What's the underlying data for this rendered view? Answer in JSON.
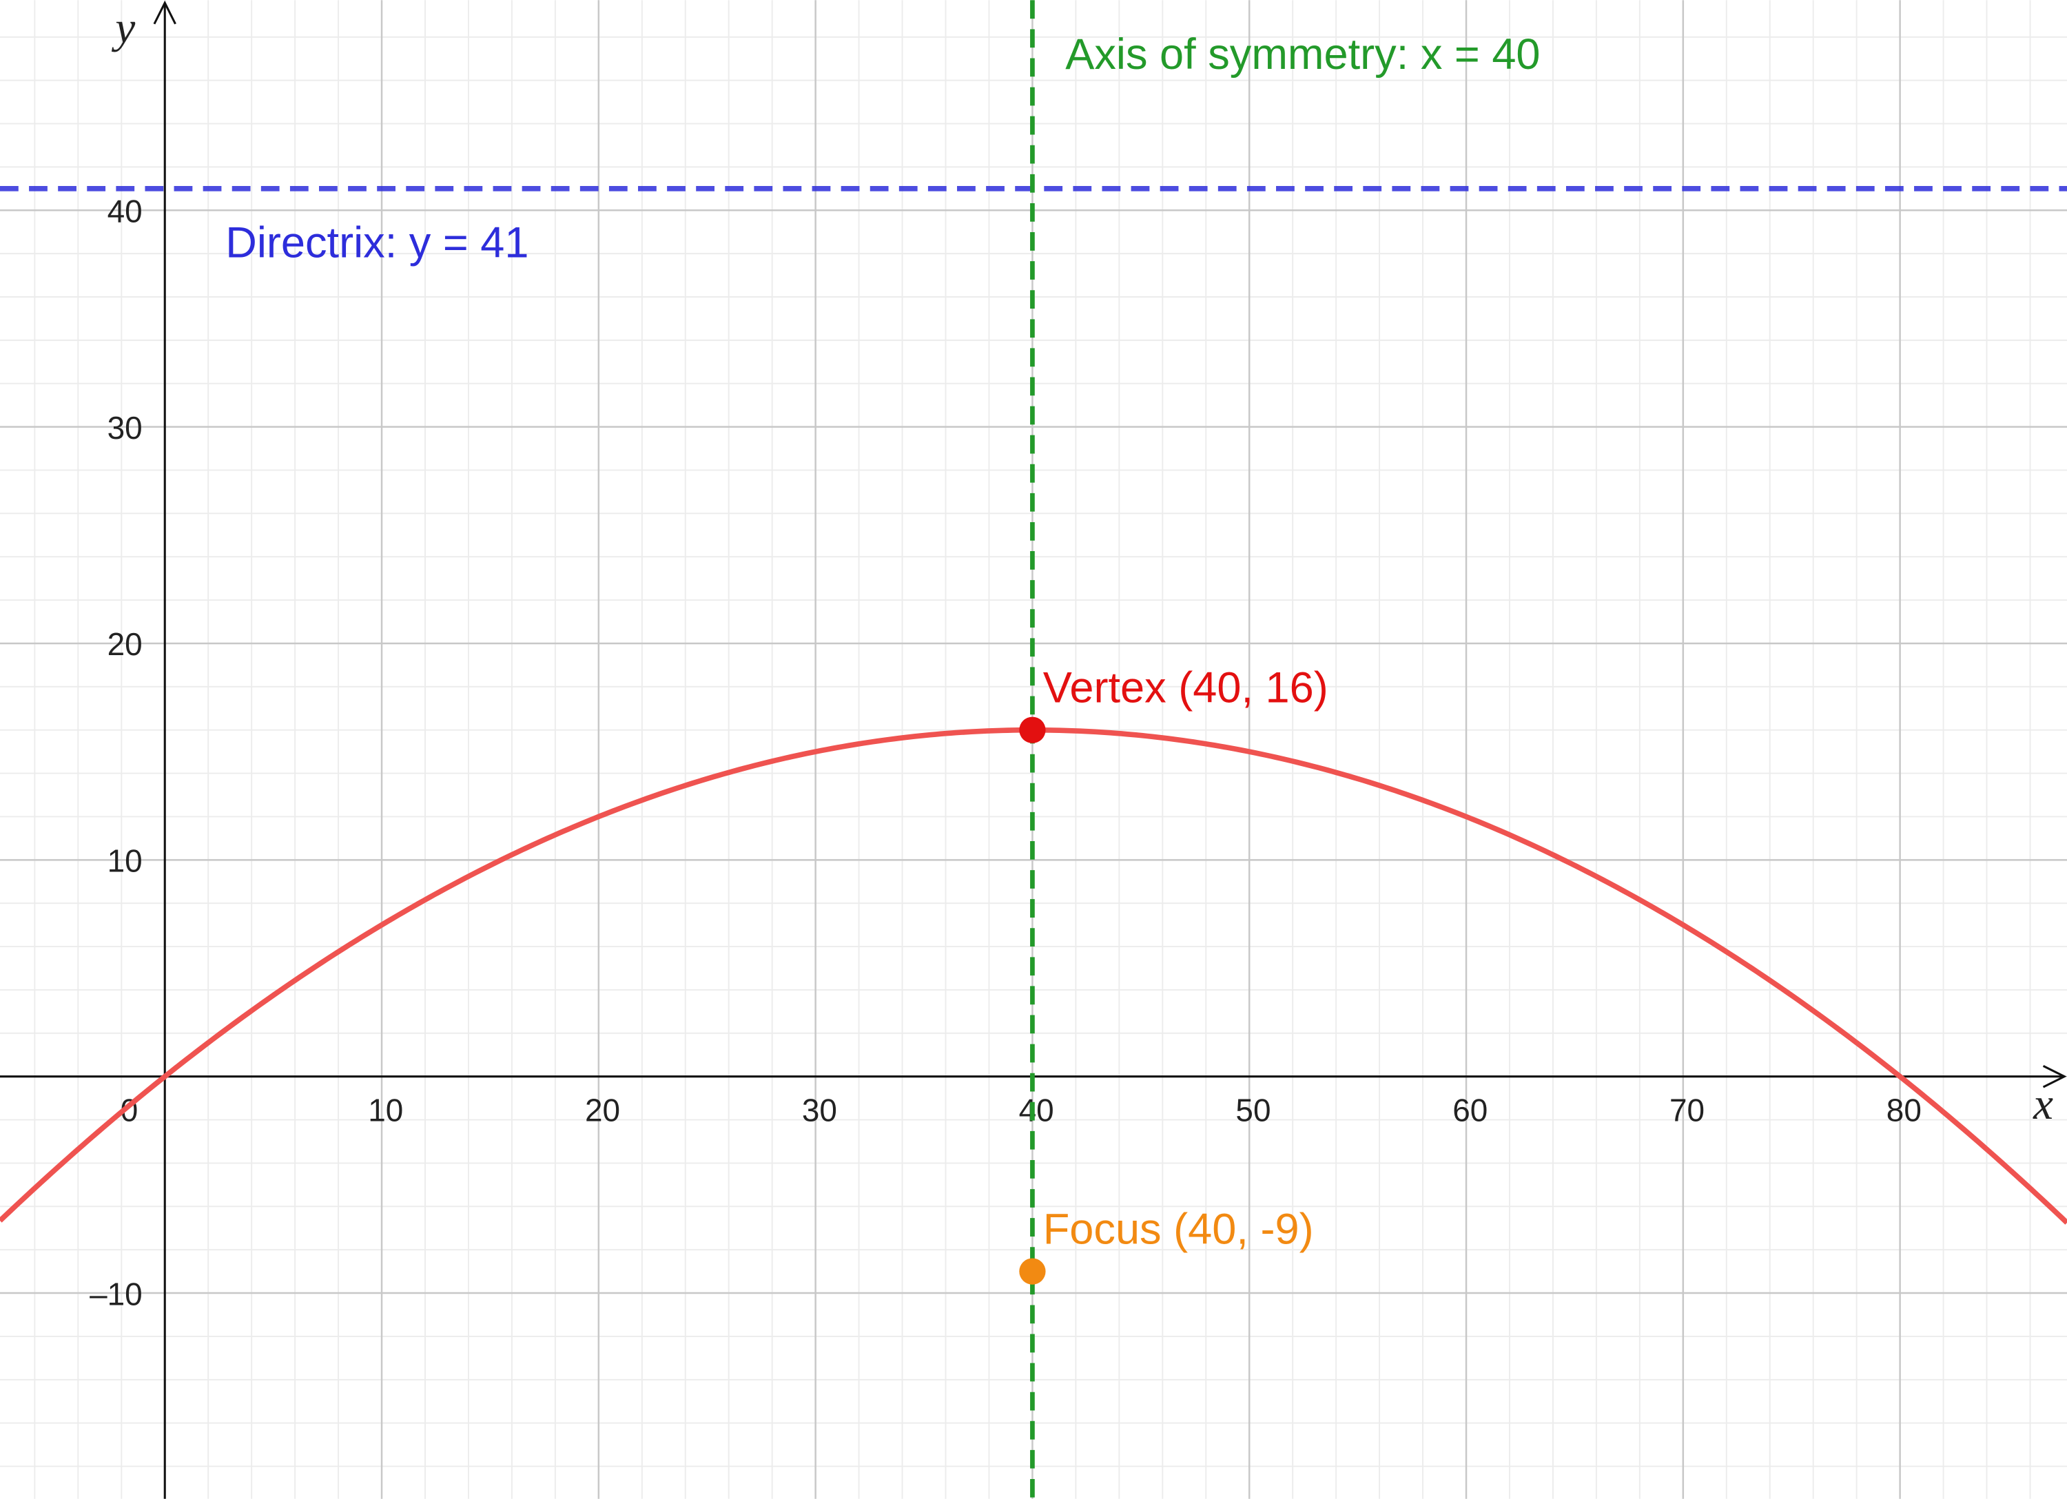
{
  "chart_data": {
    "type": "parabola",
    "x_label": "x",
    "y_label": "y",
    "xlim": [
      -7.6,
      87.7
    ],
    "ylim": [
      -19.5,
      49.7
    ],
    "xticks": [
      0,
      10,
      20,
      30,
      40,
      50,
      60,
      70,
      80
    ],
    "yticks": [
      {
        "value": -10,
        "label": "–10"
      },
      10,
      20,
      30,
      40
    ],
    "grid": true,
    "curve_color": "#ef5350",
    "vertex": {
      "x": 40,
      "y": 16,
      "label": "Vertex (40, 16)",
      "color": "#e31010"
    },
    "focus": {
      "x": 40,
      "y": -9,
      "label": "Focus (40, -9)",
      "color": "#f28a12"
    },
    "directrix": {
      "y": 41,
      "label": "Directrix:  y = 41",
      "color": "#2d2ddb"
    },
    "axis_of_symmetry": {
      "x": 40,
      "label": "Axis of symmetry:  x = 40",
      "color": "#239a2a"
    }
  }
}
